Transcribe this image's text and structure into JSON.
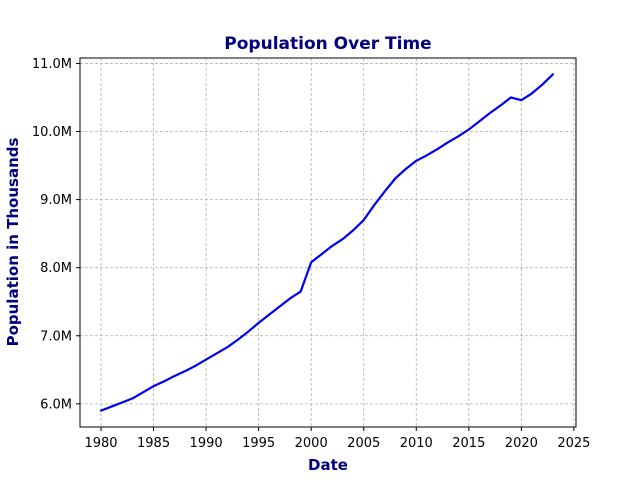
{
  "chart_data": {
    "type": "line",
    "title": "Population Over Time",
    "xlabel": "Date",
    "ylabel": "Population in Thousands",
    "xlim": [
      1978,
      2025.2
    ],
    "ylim": [
      5.66,
      11.08
    ],
    "x_ticks": [
      1980,
      1985,
      1990,
      1995,
      2000,
      2005,
      2010,
      2015,
      2020,
      2025
    ],
    "x_tick_labels": [
      "1980",
      "1985",
      "1990",
      "1995",
      "2000",
      "2005",
      "2010",
      "2015",
      "2020",
      "2025"
    ],
    "y_ticks": [
      6,
      7,
      8,
      9,
      10,
      11
    ],
    "y_tick_labels": [
      "6.0M",
      "7.0M",
      "8.0M",
      "9.0M",
      "10.0M",
      "11.0M"
    ],
    "grid": true,
    "legend": "none",
    "series": [
      {
        "color": "#0000ee",
        "x": [
          1980,
          1981,
          1982,
          1983,
          1984,
          1985,
          1986,
          1987,
          1988,
          1989,
          1990,
          1991,
          1992,
          1993,
          1994,
          1995,
          1996,
          1997,
          1998,
          1999,
          2000,
          2001,
          2002,
          2003,
          2004,
          2005,
          2006,
          2007,
          2008,
          2009,
          2010,
          2011,
          2012,
          2013,
          2014,
          2015,
          2016,
          2017,
          2018,
          2019,
          2020,
          2021,
          2022,
          2023
        ],
        "y": [
          5.9,
          5.96,
          6.02,
          6.08,
          6.17,
          6.26,
          6.33,
          6.41,
          6.48,
          6.56,
          6.65,
          6.74,
          6.83,
          6.94,
          7.06,
          7.19,
          7.31,
          7.43,
          7.55,
          7.65,
          8.08,
          8.2,
          8.32,
          8.42,
          8.55,
          8.7,
          8.92,
          9.12,
          9.31,
          9.45,
          9.57,
          9.65,
          9.74,
          9.84,
          9.93,
          10.03,
          10.15,
          10.27,
          10.38,
          10.5,
          10.46,
          10.56,
          10.69,
          10.84
        ]
      }
    ],
    "colors": {
      "title": "#000080",
      "axis_label": "#000080",
      "line": "#0000ee",
      "grid": "#b0b0b0"
    }
  }
}
